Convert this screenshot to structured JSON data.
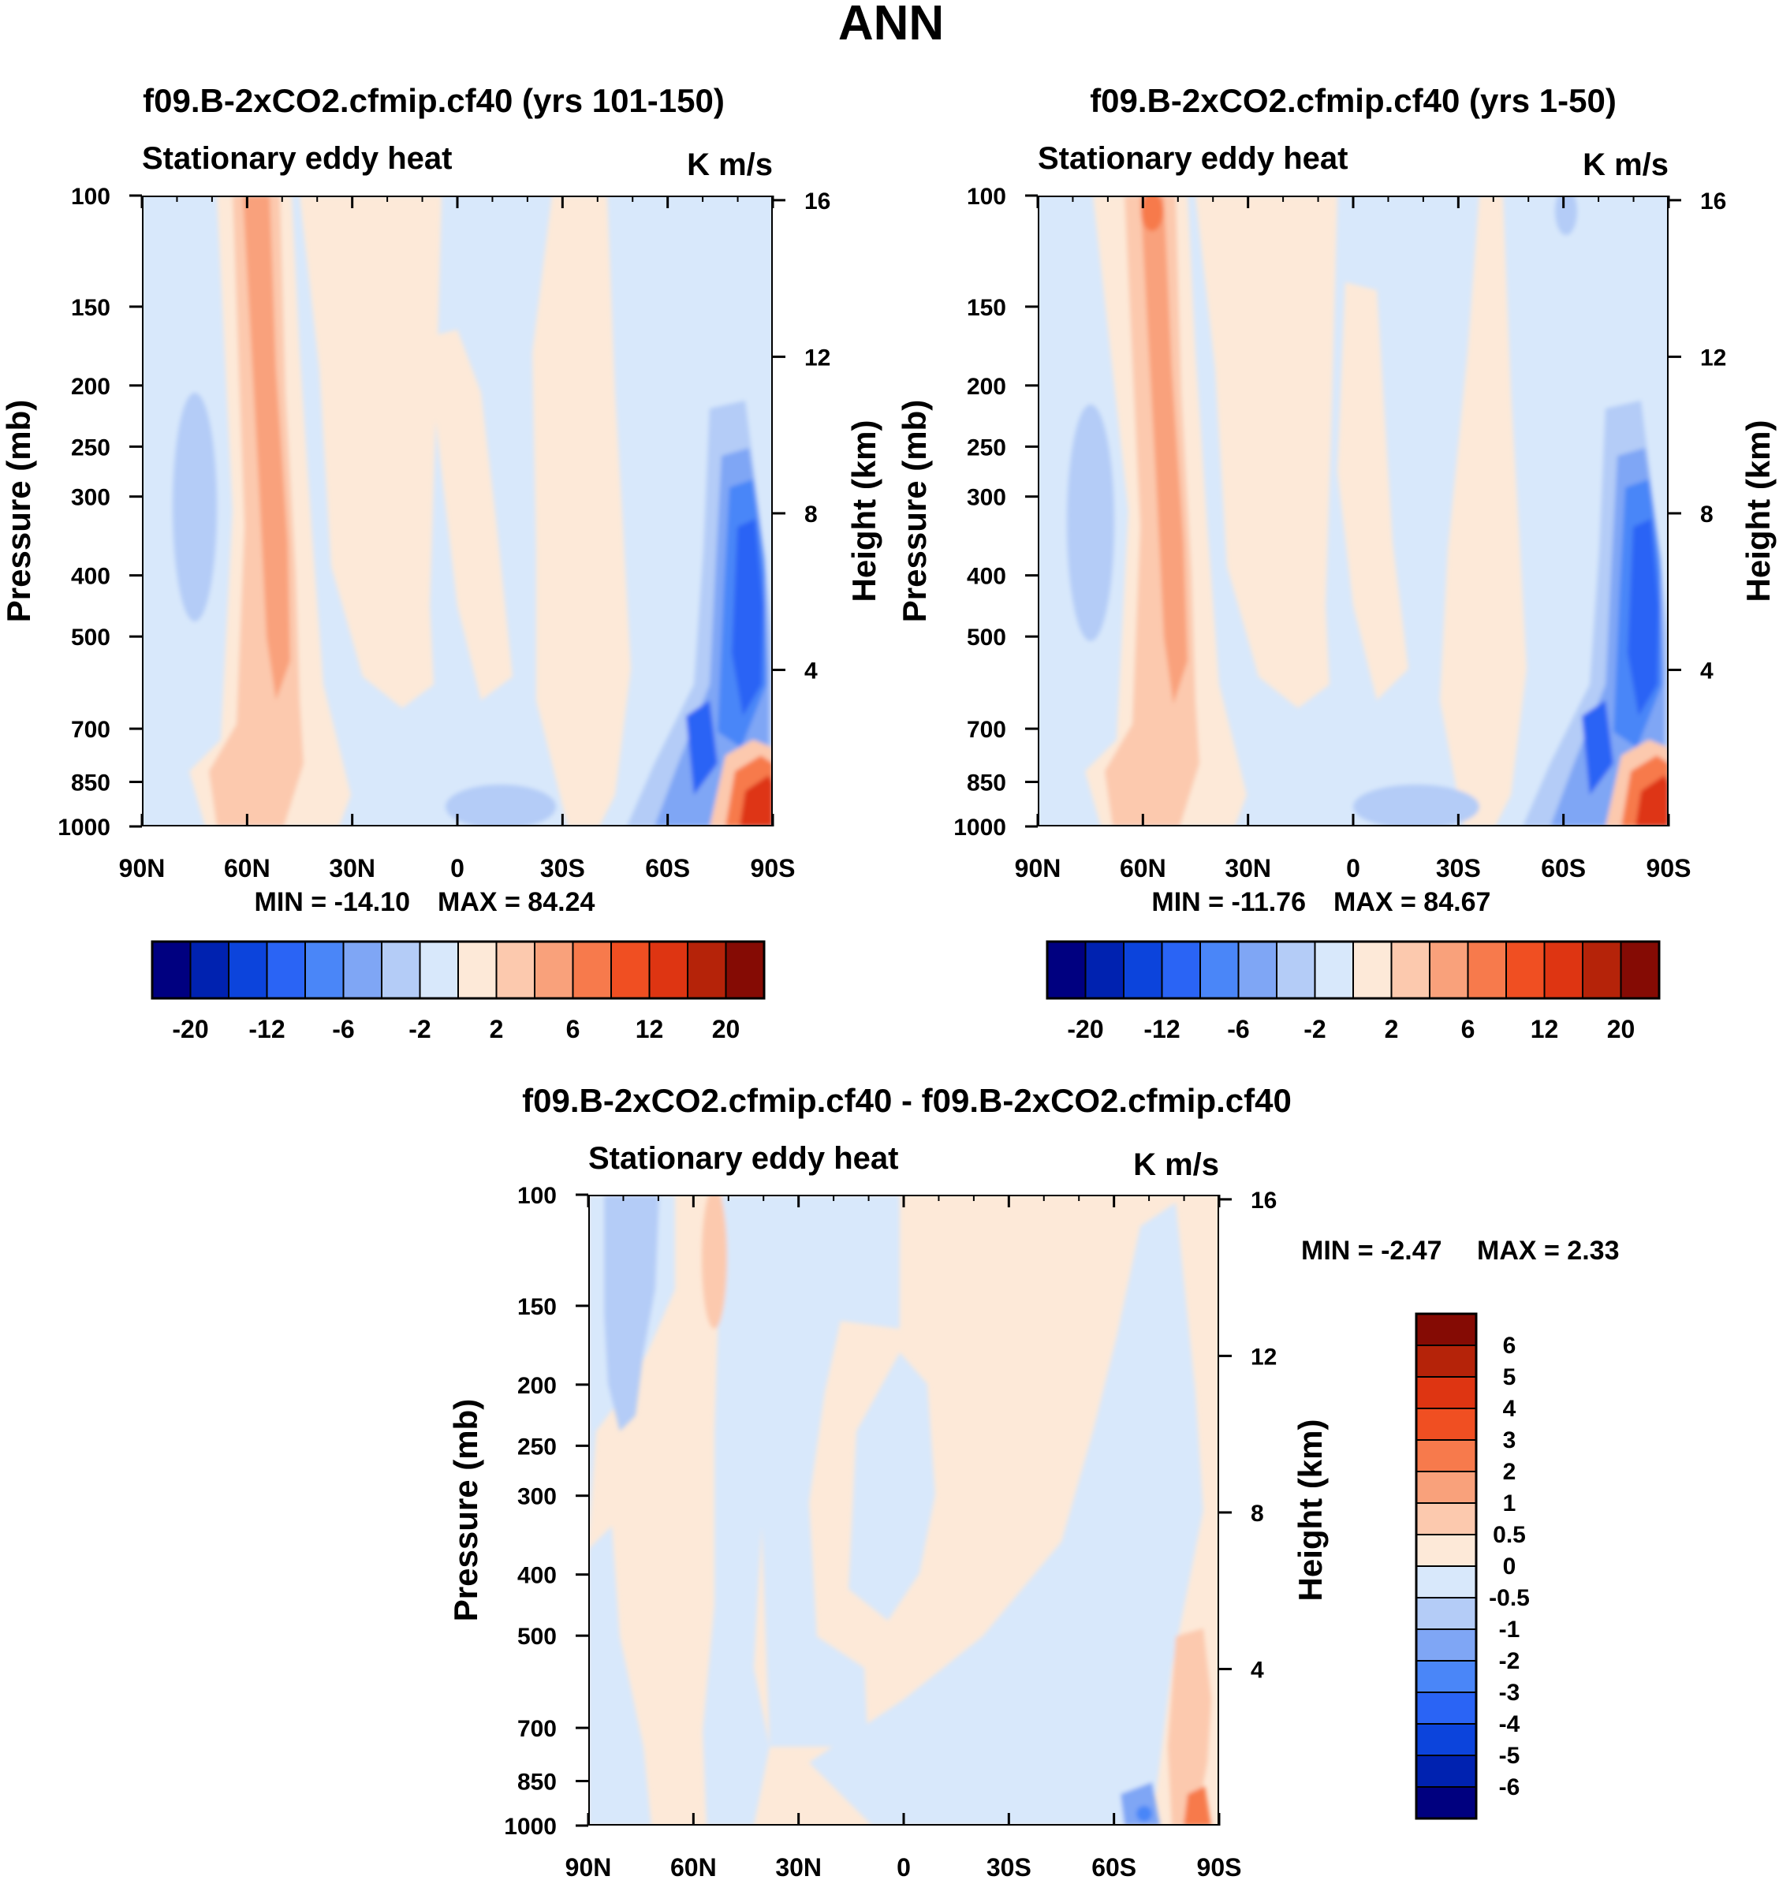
{
  "page_title": "ANN",
  "colors": {
    "main_scale": [
      "#000080",
      "#0022b0",
      "#0c44dc",
      "#2a64f5",
      "#4a86f8",
      "#7fa6f5",
      "#b4ccf7",
      "#d8e8fb",
      "#fde9d8",
      "#fcc9ae",
      "#f9a17b",
      "#f77a4c",
      "#f04f22",
      "#de3512",
      "#b52309",
      "#850b04"
    ],
    "diff_scale": [
      "#00007f",
      "#0022b0",
      "#0c44dc",
      "#2a64f5",
      "#4a86f8",
      "#7fa6f5",
      "#b4ccf7",
      "#d8e8fb",
      "#fde9d8",
      "#fcc9ae",
      "#f9a17b",
      "#f77a4c",
      "#f04f22",
      "#de3512",
      "#b52309",
      "#850b04"
    ]
  },
  "chart_data": [
    {
      "type": "heatmap",
      "id": "panel-1",
      "title": "f09.B-2xCO2.cfmip.cf40 (yrs 101-150)",
      "variable": "Stationary eddy heat",
      "units": "K m/s",
      "ylabel": "Pressure (mb)",
      "ylabel_right": "Height (km)",
      "x_ticks": [
        "90N",
        "60N",
        "30N",
        "0",
        "30S",
        "60S",
        "90S"
      ],
      "y_ticks": [
        "100",
        "150",
        "200",
        "250",
        "300",
        "400",
        "500",
        "700",
        "850",
        "1000"
      ],
      "y_ticks_right": [
        "16",
        "12",
        "8",
        "4"
      ],
      "xlim": [
        "90N",
        "90S"
      ],
      "ylim": [
        1000,
        100
      ],
      "min_label": "MIN = -14.10",
      "max_label": "MAX =  84.24",
      "features": [
        {
          "lat": 52,
          "p": 400,
          "value": 6,
          "desc": "NH midlatitude positive column"
        },
        {
          "lat": 75,
          "p": 400,
          "value": -2,
          "desc": "NH high-lat weak negative"
        },
        {
          "lat": -85,
          "p": 400,
          "value": -12,
          "desc": "Antarctic negative column"
        },
        {
          "lat": -87,
          "p": 900,
          "value": 20,
          "desc": "Antarctic surface positive"
        }
      ],
      "colorbar": {
        "labels": [
          "-20",
          "-12",
          "-6",
          "-2",
          "2",
          "6",
          "12",
          "20"
        ],
        "levels": [
          -20,
          -16,
          -12,
          -8,
          -6,
          -4,
          -2,
          0,
          2,
          4,
          6,
          8,
          12,
          16,
          20
        ]
      }
    },
    {
      "type": "heatmap",
      "id": "panel-2",
      "title": "f09.B-2xCO2.cfmip.cf40 (yrs 1-50)",
      "variable": "Stationary eddy heat",
      "units": "K m/s",
      "ylabel": "Pressure (mb)",
      "ylabel_right": "Height (km)",
      "x_ticks": [
        "90N",
        "60N",
        "30N",
        "0",
        "30S",
        "60S",
        "90S"
      ],
      "y_ticks": [
        "100",
        "150",
        "200",
        "250",
        "300",
        "400",
        "500",
        "700",
        "850",
        "1000"
      ],
      "y_ticks_right": [
        "16",
        "12",
        "8",
        "4"
      ],
      "xlim": [
        "90N",
        "90S"
      ],
      "ylim": [
        1000,
        100
      ],
      "min_label": "MIN = -11.76",
      "max_label": "MAX =  84.67",
      "features": [
        {
          "lat": 52,
          "p": 400,
          "value": 6
        },
        {
          "lat": 75,
          "p": 400,
          "value": -2
        },
        {
          "lat": -85,
          "p": 400,
          "value": -12
        },
        {
          "lat": -87,
          "p": 900,
          "value": 20
        }
      ],
      "colorbar": {
        "labels": [
          "-20",
          "-12",
          "-6",
          "-2",
          "2",
          "6",
          "12",
          "20"
        ],
        "levels": [
          -20,
          -16,
          -12,
          -8,
          -6,
          -4,
          -2,
          0,
          2,
          4,
          6,
          8,
          12,
          16,
          20
        ]
      }
    },
    {
      "type": "heatmap",
      "id": "panel-diff",
      "title": "f09.B-2xCO2.cfmip.cf40 - f09.B-2xCO2.cfmip.cf40",
      "variable": "Stationary eddy heat",
      "units": "K m/s",
      "ylabel": "Pressure (mb)",
      "ylabel_right": "Height (km)",
      "x_ticks": [
        "90N",
        "60N",
        "30N",
        "0",
        "30S",
        "60S",
        "90S"
      ],
      "y_ticks": [
        "100",
        "150",
        "200",
        "250",
        "300",
        "400",
        "500",
        "700",
        "850",
        "1000"
      ],
      "y_ticks_right": [
        "16",
        "12",
        "8",
        "4"
      ],
      "xlim": [
        "90N",
        "90S"
      ],
      "ylim": [
        1000,
        100
      ],
      "min_label": "MIN =  -2.47",
      "max_label": "MAX =   2.33",
      "colorbar": {
        "labels": [
          "6",
          "5",
          "4",
          "3",
          "2",
          "1",
          "0.5",
          "0",
          "-0.5",
          "-1",
          "-2",
          "-3",
          "-4",
          "-5",
          "-6"
        ],
        "levels": [
          -6,
          -5,
          -4,
          -3,
          -2,
          -1,
          -0.5,
          0,
          0.5,
          1,
          2,
          3,
          4,
          5,
          6
        ]
      }
    }
  ]
}
